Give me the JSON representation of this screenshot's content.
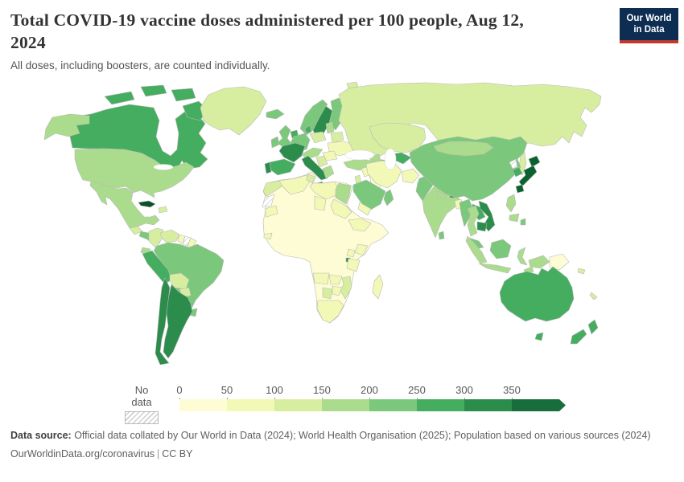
{
  "header": {
    "title": "Total COVID-19 vaccine doses administered per 100 people, Aug 12, 2024",
    "subtitle": "All doses, including boosters, are counted individually.",
    "logo": {
      "line1": "Our World",
      "line2": "in Data",
      "bg_color": "#0d2e52",
      "accent_color": "#bf3a2e"
    }
  },
  "legend": {
    "no_data_label": "No data",
    "ticks": [
      "0",
      "50",
      "100",
      "150",
      "200",
      "250",
      "300",
      "350"
    ],
    "colors": [
      "#fdfcd4",
      "#f2f8b5",
      "#d7eea1",
      "#abdb8d",
      "#7bc87c",
      "#45ad5f",
      "#2b8c4b",
      "#176e3c"
    ]
  },
  "map": {
    "ocean_color": "#ffffff",
    "border_color": "#b9b9b9",
    "region_colors": {
      "canada": "#45ad5f",
      "alaska": "#abdb8d",
      "usa": "#abdb8d",
      "greenland": "#d7eea1",
      "mexico": "#abdb8d",
      "guatemala": "#d7eea1",
      "central-america": "#7bc87c",
      "cuba": "#0d4f29",
      "hispaniola": "#d7eea1",
      "colombia": "#d7eea1",
      "venezuela": "#d7eea1",
      "guyana": "#f2f8b5",
      "suriname": "nodata",
      "french-guiana": "#f2f8b5",
      "ecuador": "#abdb8d",
      "peru": "#45ad5f",
      "brazil": "#7bc87c",
      "bolivia": "#d7eea1",
      "paraguay": "#d7eea1",
      "uruguay": "#7bc87c",
      "argentina": "#2b8c4b",
      "chile": "#2b8c4b",
      "iceland": "#7bc87c",
      "norway": "#7bc87c",
      "sweden": "#2b8c4b",
      "finland": "#7bc87c",
      "denmark": "#45ad5f",
      "uk": "#7bc87c",
      "ireland": "#7bc87c",
      "france": "#2b8c4b",
      "spain": "#45ad5f",
      "portugal": "#2b8c4b",
      "benelux": "#45ad5f",
      "germany": "#7bc87c",
      "poland": "#d7eea1",
      "alpine": "#abdb8d",
      "italy": "#2b8c4b",
      "baltics": "#abdb8d",
      "belarus": "#d7eea1",
      "ukraine": "#f2f8b5",
      "romania": "#f2f8b5",
      "balkans": "#d7eea1",
      "greece": "#abdb8d",
      "russia": "#d7eea1",
      "svalbard": "#d7eea1",
      "sakhalin": "#d7eea1",
      "kazakhstan": "#d7eea1",
      "uzbekistan": "#45ad5f",
      "turkmenistan": "#7bc87c",
      "kyrgyzstan": "#7bc87c",
      "caucasus": "#abdb8d",
      "turkey": "#abdb8d",
      "syria": "#f2f8b5",
      "iraq": "#fdfcd4",
      "jordan": "#d7eea1",
      "iran": "#f2f8b5",
      "afghanistan": "#f2f8b5",
      "saudi-arabia": "#7bc87c",
      "yemen": "#f2f8b5",
      "oman": "#7bc87c",
      "pakistan": "#7bc87c",
      "india": "#abdb8d",
      "nepal": "#abdb8d",
      "bhutan": "#2b8c4b",
      "bangladesh": "#f2f8b5",
      "sri-lanka": "#7bc87c",
      "china": "#7bc87c",
      "mongolia": "#abdb8d",
      "north-korea": "nodata",
      "south-korea": "#45ad5f",
      "japan": "#0b6130",
      "taiwan": "#7bc87c",
      "myanmar": "#7bc87c",
      "thailand": "#abdb8d",
      "laos": "#45ad5f",
      "vietnam": "#2b8c4b",
      "cambodia": "#2b8c4b",
      "malaysia": "#7bc87c",
      "sumatra": "#abdb8d",
      "java": "#abdb8d",
      "borneo": "#7bc87c",
      "sulawesi": "#abdb8d",
      "timor": "#abdb8d",
      "west-papua": "#abdb8d",
      "papua-new-guinea": "#fdfcd4",
      "philippines": "#abdb8d",
      "philippines-south": "#abdb8d",
      "australia": "#45ad5f",
      "tasmania": "#45ad5f",
      "new-zealand-north": "#45ad5f",
      "new-zealand-south": "#45ad5f",
      "solomon-islands": "#d7eea1",
      "new-caledonia": "#d7eea1",
      "africa": "#fdfcd4",
      "morocco": "#d7eea1",
      "western-sahara": "nodata",
      "algeria": "#f2f8b5",
      "tunisia": "#d7eea1",
      "libya": "#f2f8b5",
      "egypt": "#abdb8d",
      "mauritania": "#f2f8b5",
      "senegal": "#f2f8b5",
      "chad": "#f2f8b5",
      "sudan": "#f2f8b5",
      "ethiopia": "#f2f8b5",
      "kenya": "#f2f8b5",
      "uganda": "#f2f8b5",
      "rwanda": "#2b8c4b",
      "tanzania": "#f2f8b5",
      "angola": "#f2f8b5",
      "zambia": "#f2f8b5",
      "mozambique": "#d7eea1",
      "zimbabwe": "#f2f8b5",
      "botswana": "#d7eea1",
      "south-africa": "#f2f8b5",
      "madagascar": "#f2f8b5"
    }
  },
  "footer": {
    "source_label": "Data source:",
    "source_text": " Official data collated by Our World in Data (2024); World Health Organisation (2025); Population based on various sources (2024)",
    "link": "OurWorldinData.org/coronavirus",
    "divider": "|",
    "license": "CC BY"
  }
}
